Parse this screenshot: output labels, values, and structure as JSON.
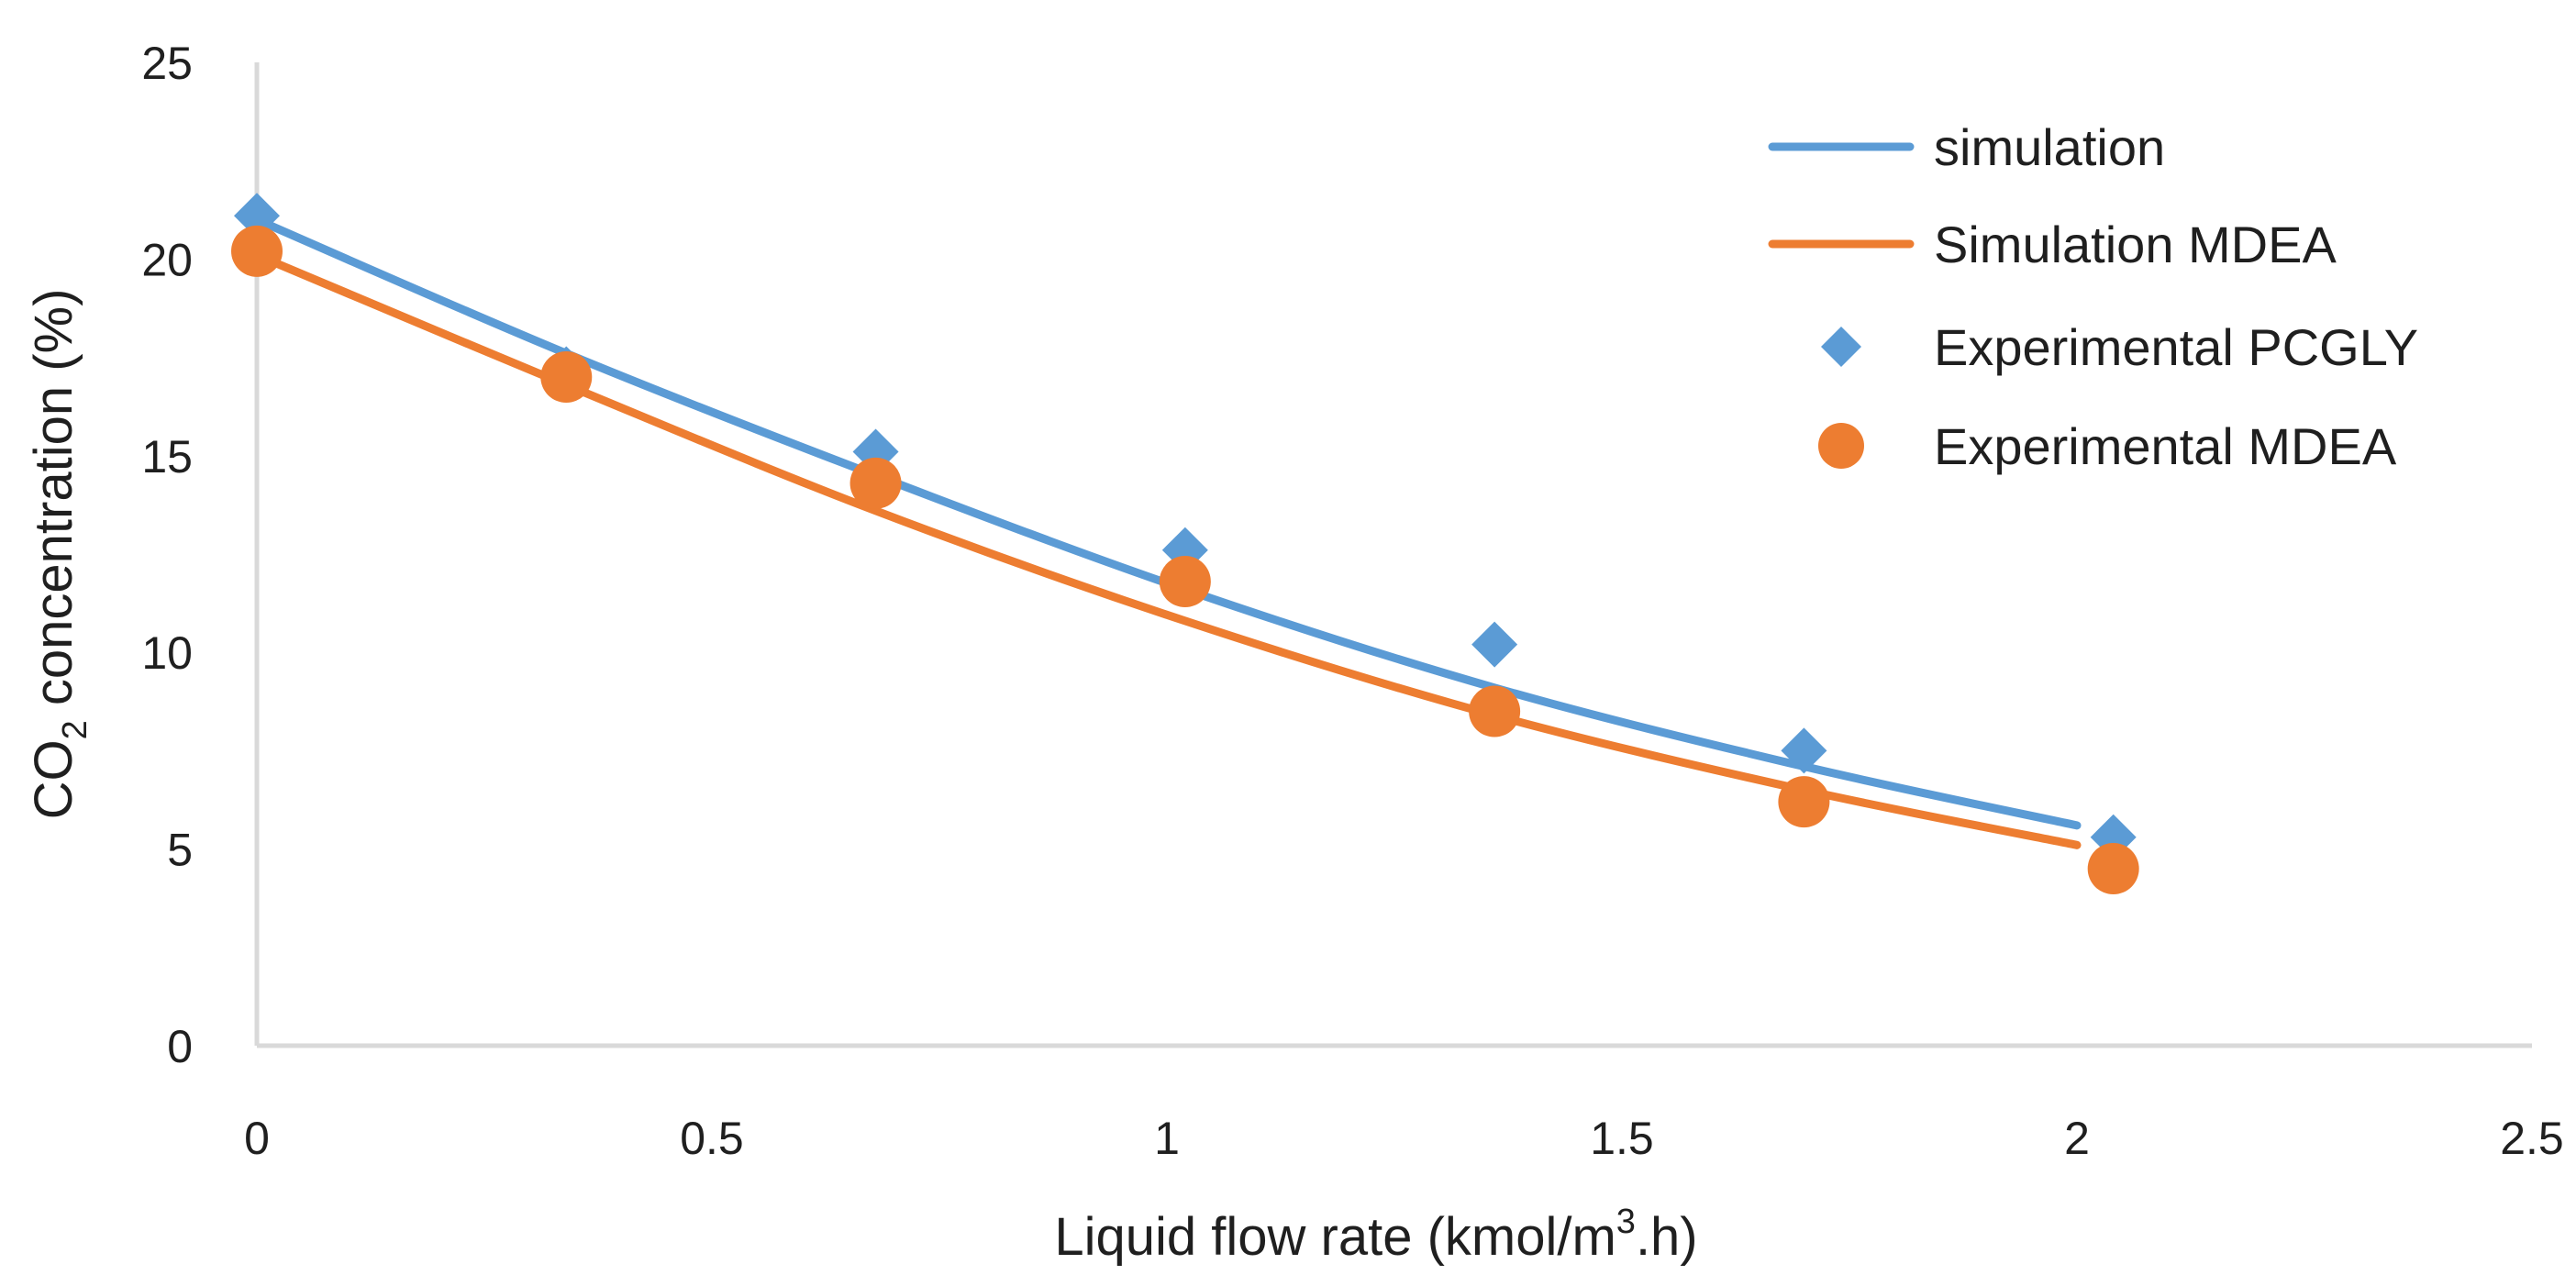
{
  "chart_data": {
    "type": "line",
    "title": "",
    "xlabel": "Liquid flow rate (kmol/m³.h)",
    "xlabel_parts": {
      "pre": "Liquid flow rate (kmol/m",
      "sup": "3",
      "post": ".h)"
    },
    "ylabel": "CO₂ concentration (%)",
    "ylabel_parts": {
      "pre": "CO",
      "sub": "2",
      "post": " concentration (%)"
    },
    "xlim": [
      0,
      2.5
    ],
    "ylim": [
      0,
      25
    ],
    "x_ticks": [
      0,
      0.5,
      1,
      1.5,
      2,
      2.5
    ],
    "x_tick_labels": [
      "0",
      "0.5",
      "1",
      "1.5",
      "2",
      "2.5"
    ],
    "y_ticks": [
      0,
      5,
      10,
      15,
      20,
      25
    ],
    "y_tick_labels": [
      "0",
      "5",
      "10",
      "15",
      "20",
      "25"
    ],
    "grid": false,
    "legend_position": "top-right",
    "series": [
      {
        "name": "simulation",
        "kind": "line",
        "color": "#5b9bd5",
        "x": [
          0,
          0.34,
          0.68,
          1.02,
          1.36,
          1.7,
          2.0
        ],
        "y": [
          21.0,
          17.6,
          14.5,
          11.6,
          9.1,
          7.1,
          5.6
        ]
      },
      {
        "name": "Simulation MDEA",
        "kind": "line",
        "color": "#ed7d31",
        "x": [
          0,
          0.34,
          0.68,
          1.02,
          1.36,
          1.7,
          2.0
        ],
        "y": [
          20.1,
          16.8,
          13.6,
          10.8,
          8.4,
          6.5,
          5.1
        ]
      },
      {
        "name": "Experimental PCGLY",
        "kind": "scatter",
        "marker": "diamond",
        "color": "#5b9bd5",
        "x": [
          0,
          0.34,
          0.68,
          1.02,
          1.36,
          1.7,
          2.04
        ],
        "y": [
          21.1,
          17.2,
          15.1,
          12.6,
          10.2,
          7.5,
          5.3
        ]
      },
      {
        "name": "Experimental MDEA",
        "kind": "scatter",
        "marker": "circle",
        "color": "#ed7d31",
        "x": [
          0,
          0.34,
          0.68,
          1.02,
          1.36,
          1.7,
          2.04
        ],
        "y": [
          20.2,
          17.0,
          14.3,
          11.8,
          8.5,
          6.2,
          4.5
        ]
      }
    ]
  }
}
